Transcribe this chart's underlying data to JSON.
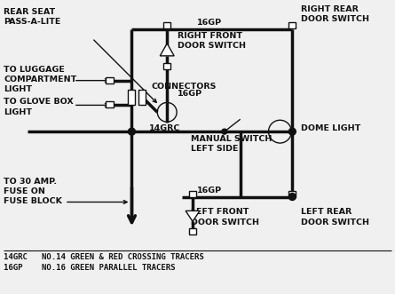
{
  "bg_color": "#f0f0f0",
  "line_color": "#111111",
  "lw_thick": 2.5,
  "lw_thin": 1.0,
  "labels": {
    "rear_seat": "REAR SEAT\nPASS-A-LITE",
    "to_luggage": "TO LUGGAGE\nCOMPARTMENT\nLIGHT",
    "to_glove": "TO GLOVE BOX\nLIGHT",
    "to_30amp": "TO 30 AMP.\nFUSE ON\nFUSE BLOCK",
    "right_front": "RIGHT FRONT\nDOOR SWITCH",
    "right_rear": "RIGHT REAR\nDOOR SWITCH",
    "connectors": "CONNECTORS",
    "14grc": "14GRC",
    "16gp_top": "16GP",
    "16gp_bot": "16GP",
    "manual_switch": "MANUAL SWITCH\nLEFT SIDE",
    "dome_light": "DOME LIGHT",
    "left_front": "LEFT FRONT\nDOOR SWITCH",
    "left_rear": "LEFT REAR\nDOOR SWITCH",
    "leg1": "14GRC   NO.14 GREEN & RED CROSSING TRACERS",
    "leg2": "16GP    NO.16 GREEN PARALLEL TRACERS"
  }
}
